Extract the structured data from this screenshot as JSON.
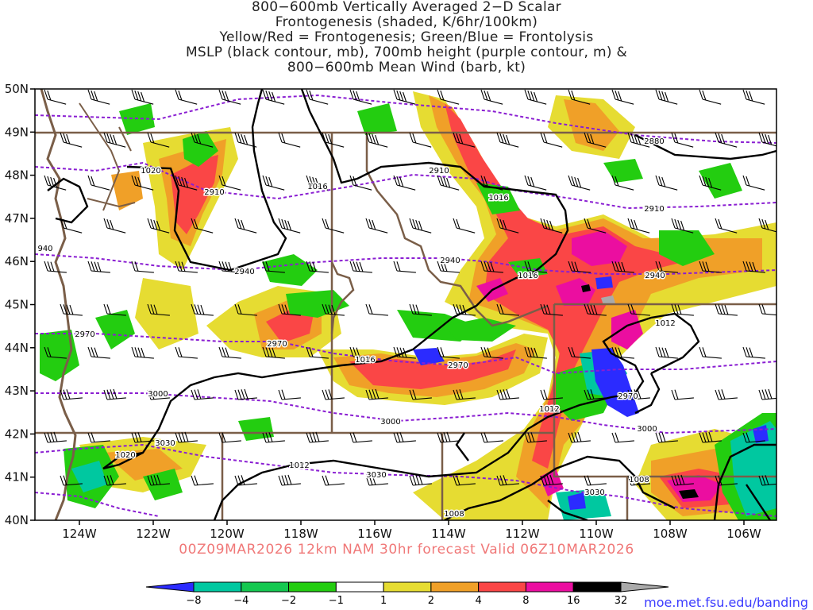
{
  "title": {
    "lines": [
      "800−600mb Vertically Averaged 2−D Scalar",
      "Frontogenesis (shaded, K/6hr/100km)",
      "Yellow/Red = Frontogenesis;  Green/Blue = Frontolysis",
      "MSLP (black contour, mb), 700mb height (purple contour, m) &",
      "800−600mb Mean Wind (barb, kt)"
    ]
  },
  "valid_line": "00Z09MAR2026 12km NAM 30hr forecast Valid 06Z10MAR2026",
  "credit": "moe.met.fsu.edu/banding",
  "axes": {
    "lat_labels": [
      "50N",
      "49N",
      "48N",
      "47N",
      "46N",
      "45N",
      "44N",
      "43N",
      "42N",
      "41N",
      "40N"
    ],
    "lon_labels": [
      "124W",
      "122W",
      "120W",
      "118W",
      "116W",
      "114W",
      "112W",
      "110W",
      "108W",
      "106W"
    ]
  },
  "colorbar": {
    "labels": [
      "−8",
      "−4",
      "−2",
      "−1",
      "1",
      "2",
      "4",
      "8",
      "16",
      "32"
    ],
    "colors": [
      "#2b2bff",
      "#00c8a0",
      "#14c850",
      "#23cd10",
      "#ffffff",
      "#e6dc32",
      "#f0a028",
      "#fa4646",
      "#eb0ea0",
      "#000000",
      "#aaaaaa"
    ]
  },
  "contour_labels": {
    "mslp": [
      "1020",
      "1016",
      "1016",
      "1016",
      "1016",
      "1012",
      "1012",
      "1012",
      "1020",
      "1012",
      "1008",
      "1008"
    ],
    "height": [
      "2880",
      "2910",
      "2910",
      "2910",
      "2940",
      "2940",
      "2940",
      "2970",
      "2970",
      "2970",
      "2970",
      "3000",
      "3000",
      "3000",
      "3030",
      "3030",
      "3030",
      "940"
    ]
  }
}
